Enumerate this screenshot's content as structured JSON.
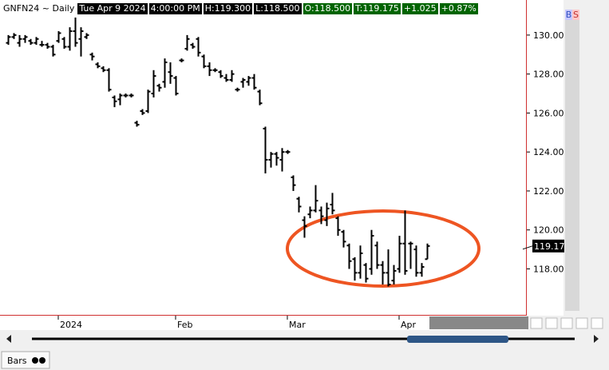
{
  "header": {
    "symbol": "GNFN24 ~ Daily",
    "date": "Tue Apr 9 2024",
    "time": "4:00:00 PM",
    "high": "H:119.300",
    "low": "L:118.500",
    "open": "O:118.500",
    "last": "T:119.175",
    "change": "+1.025",
    "change_pct": "+0.87%"
  },
  "buttons": [
    "B",
    "S"
  ],
  "tab": "Bars",
  "chart_data": {
    "type": "ohlc",
    "color": "#000000",
    "categories": [
      null,
      null,
      null,
      null,
      null,
      null,
      null,
      null,
      null,
      "2024",
      null,
      null,
      null,
      null,
      null,
      null,
      null,
      null,
      null,
      null,
      null,
      null,
      null,
      null,
      null,
      null,
      null,
      null,
      null,
      null,
      "Feb",
      null,
      null,
      null,
      null,
      null,
      null,
      null,
      null,
      null,
      null,
      null,
      null,
      null,
      null,
      null,
      null,
      null,
      null,
      null,
      "Mar",
      null,
      null,
      null,
      null,
      null,
      null,
      null,
      null,
      null,
      null,
      null,
      null,
      null,
      null,
      null,
      null,
      null,
      null,
      null,
      "Apr",
      null,
      null,
      null,
      null,
      null
    ],
    "open": [
      129.6,
      129.9,
      129.6,
      129.8,
      129.7,
      129.6,
      129.5,
      129.5,
      129.4,
      129.7,
      129.8,
      129.4,
      130.2,
      129.8,
      129.9,
      129.0,
      128.5,
      128.3,
      128.2,
      126.8,
      126.7,
      126.9,
      126.9,
      125.5,
      126.1,
      126.1,
      127.0,
      127.4,
      127.6,
      128.1,
      127.8,
      128.7,
      129.3,
      129.5,
      129.8,
      128.9,
      128.4,
      128.2,
      128.1,
      127.8,
      127.7,
      127.2,
      127.6,
      127.6,
      127.8,
      127.1,
      125.2,
      123.6,
      123.9,
      123.6,
      124.0,
      122.7,
      121.6,
      120.5,
      120.8,
      121.0,
      121.0,
      120.5,
      121.3,
      120.6,
      119.9,
      119.2,
      118.5,
      117.8,
      118.2,
      118.0,
      119.2,
      118.2,
      117.8,
      117.4,
      118.0,
      119.3,
      119.3,
      119.0,
      117.8,
      118.5
    ],
    "high": [
      130.0,
      130.1,
      130.0,
      130.0,
      129.8,
      129.9,
      129.7,
      129.6,
      129.5,
      130.2,
      129.9,
      130.4,
      130.9,
      130.4,
      130.1,
      129.1,
      128.6,
      128.4,
      128.3,
      126.9,
      127.0,
      127.0,
      127.0,
      125.6,
      126.2,
      127.2,
      128.2,
      127.5,
      128.8,
      128.6,
      127.9,
      128.8,
      130.0,
      129.6,
      129.9,
      129.0,
      128.6,
      128.3,
      128.2,
      128.0,
      128.2,
      127.3,
      127.8,
      127.9,
      128.0,
      127.2,
      125.3,
      124.0,
      124.0,
      124.2,
      124.1,
      122.8,
      121.7,
      120.7,
      121.2,
      122.3,
      121.2,
      121.4,
      121.9,
      120.7,
      120.0,
      119.3,
      118.6,
      119.2,
      118.3,
      120.0,
      119.4,
      118.4,
      119.0,
      118.2,
      119.7,
      121.0,
      119.4,
      119.2,
      118.3,
      119.3
    ],
    "low": [
      129.5,
      129.8,
      129.4,
      129.6,
      129.5,
      129.5,
      129.4,
      129.3,
      128.9,
      129.6,
      129.3,
      129.2,
      129.4,
      128.9,
      129.8,
      128.7,
      128.3,
      128.1,
      127.1,
      126.3,
      126.4,
      126.8,
      126.8,
      125.3,
      125.9,
      126.0,
      126.8,
      127.1,
      127.3,
      127.5,
      126.9,
      128.6,
      129.2,
      129.3,
      128.9,
      128.3,
      127.9,
      128.1,
      127.8,
      127.6,
      127.6,
      127.1,
      127.3,
      127.4,
      127.2,
      126.4,
      122.9,
      123.2,
      123.3,
      123.0,
      123.9,
      122.0,
      120.9,
      119.6,
      120.6,
      120.9,
      120.3,
      120.2,
      120.8,
      119.7,
      119.1,
      118.0,
      117.4,
      117.5,
      117.3,
      117.7,
      118.0,
      117.2,
      117.1,
      117.2,
      117.8,
      117.7,
      118.0,
      117.6,
      117.6,
      118.5
    ],
    "close": [
      129.9,
      130.0,
      129.8,
      129.9,
      129.6,
      129.8,
      129.5,
      129.4,
      129.0,
      130.1,
      129.4,
      130.2,
      129.6,
      130.2,
      130.0,
      128.9,
      128.4,
      128.2,
      127.2,
      126.6,
      126.9,
      126.9,
      126.9,
      125.4,
      126.0,
      127.1,
      127.9,
      127.3,
      128.6,
      127.9,
      127.0,
      128.7,
      129.8,
      129.4,
      129.1,
      128.4,
      128.2,
      128.2,
      127.9,
      127.7,
      128.0,
      127.2,
      127.7,
      127.8,
      127.3,
      126.5,
      123.6,
      123.9,
      123.7,
      124.0,
      124.0,
      122.3,
      121.2,
      120.2,
      121.0,
      121.5,
      120.7,
      121.1,
      121.0,
      120.0,
      119.4,
      118.4,
      117.8,
      118.8,
      117.5,
      119.7,
      118.2,
      117.8,
      117.2,
      117.9,
      119.3,
      117.9,
      119.3,
      117.8,
      118.1,
      119.175
    ],
    "ylim": [
      115.6,
      131.8
    ],
    "yticks": [
      {
        "value": 118,
        "label": "118.00"
      },
      {
        "value": 120,
        "label": "120.00"
      },
      {
        "value": 122,
        "label": "122.00"
      },
      {
        "value": 124,
        "label": "124.00"
      },
      {
        "value": 126,
        "label": "126.00"
      },
      {
        "value": 128,
        "label": "128.00"
      },
      {
        "value": 130,
        "label": "130.00"
      }
    ],
    "last_price": {
      "value": 119.175,
      "label": "119.17"
    }
  }
}
